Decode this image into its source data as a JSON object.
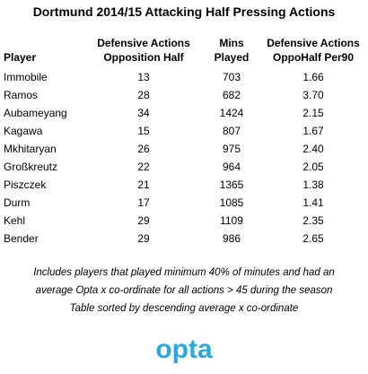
{
  "title": "Dortmund 2014/15 Attacking Half Pressing Actions",
  "columns": {
    "player": "Player",
    "def_line1": "Defensive Actions",
    "def_line2": "Opposition Half",
    "mins_line1": "Mins",
    "mins_line2": "Played",
    "per_line1": "Defensive Actions",
    "per_line2": "OppoHalf Per90"
  },
  "rows": [
    {
      "player": "Immobile",
      "def": "13",
      "mins": "703",
      "per90": "1.66"
    },
    {
      "player": "Ramos",
      "def": "28",
      "mins": "682",
      "per90": "3.70"
    },
    {
      "player": "Aubameyang",
      "def": "34",
      "mins": "1424",
      "per90": "2.15"
    },
    {
      "player": "Kagawa",
      "def": "15",
      "mins": "807",
      "per90": "1.67"
    },
    {
      "player": "Mkhitaryan",
      "def": "26",
      "mins": "975",
      "per90": "2.40"
    },
    {
      "player": "Großkreutz",
      "def": "22",
      "mins": "964",
      "per90": "2.05"
    },
    {
      "player": "Piszczek",
      "def": "21",
      "mins": "1365",
      "per90": "1.38"
    },
    {
      "player": "Durm",
      "def": "17",
      "mins": "1085",
      "per90": "1.41"
    },
    {
      "player": "Kehl",
      "def": "29",
      "mins": "1109",
      "per90": "2.35"
    },
    {
      "player": "Bender",
      "def": "29",
      "mins": "986",
      "per90": "2.65"
    }
  ],
  "notes": [
    "Includes players that played minimum 40% of minutes and had an",
    "average Opta x co-ordinate for all actions > 45 during the season",
    "Table sorted by descending average x co-ordinate"
  ],
  "logo": {
    "text": "opta",
    "color": "#2aa8dc",
    "icon": "opta-logo"
  }
}
